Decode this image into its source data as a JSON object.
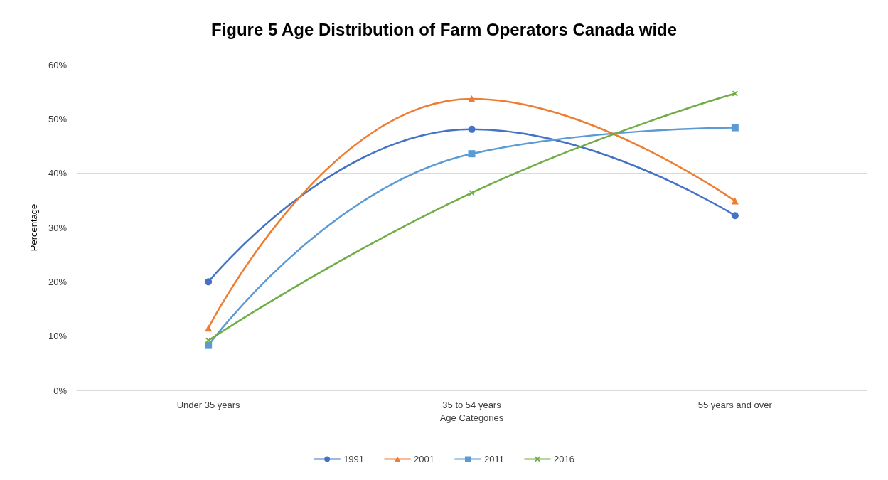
{
  "chart_data": {
    "type": "line",
    "title": "Figure 5 Age Distribution of Farm Operators Canada wide",
    "xlabel": "Age Categories",
    "ylabel": "Percentage",
    "categories": [
      "Under 35 years",
      "35 to 54 years",
      "55 years and over"
    ],
    "series": [
      {
        "name": "1991",
        "color": "#4472c4",
        "marker": "circle",
        "values": [
          20,
          48.1,
          32.2
        ]
      },
      {
        "name": "2001",
        "color": "#ed7d31",
        "marker": "triangle",
        "values": [
          11.5,
          53.7,
          34.9
        ]
      },
      {
        "name": "2011",
        "color": "#5b9bd5",
        "marker": "square",
        "values": [
          8.3,
          43.6,
          48.4
        ]
      },
      {
        "name": "2016",
        "color": "#70ad47",
        "marker": "cross",
        "values": [
          9.2,
          36.4,
          54.7
        ]
      }
    ],
    "ylim": [
      0,
      60
    ],
    "yticks": [
      {
        "value": 0,
        "label": "0%"
      },
      {
        "value": 10,
        "label": "10%"
      },
      {
        "value": 20,
        "label": "20%"
      },
      {
        "value": 30,
        "label": "30%"
      },
      {
        "value": 40,
        "label": "40%"
      },
      {
        "value": 50,
        "label": "50%"
      },
      {
        "value": 60,
        "label": "60%"
      }
    ],
    "grid": "y",
    "legend": "bottom",
    "line_style": "solid"
  }
}
